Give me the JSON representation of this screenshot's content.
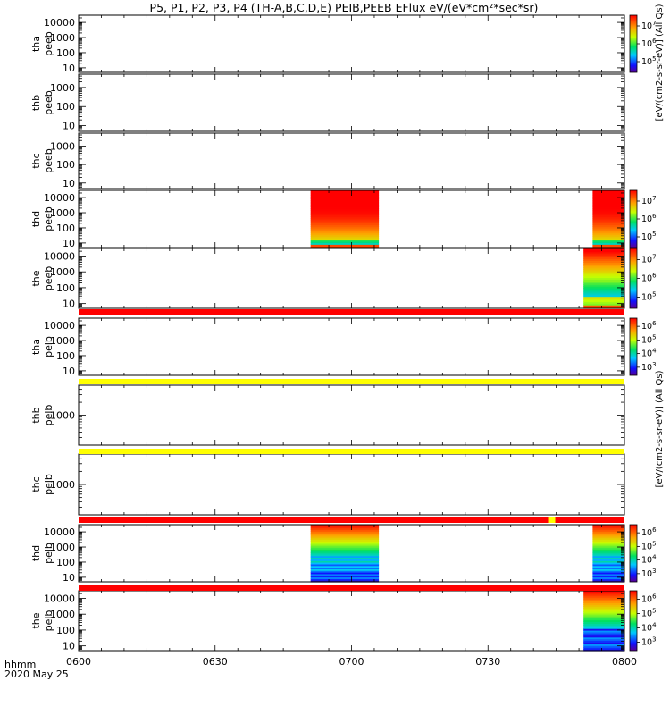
{
  "title": "P5, P1, P2, P3, P4 (TH-A,B,C,D,E) PEIB,PEEB EFlux eV/(eV*cm²*sec*sr)",
  "footer": {
    "time_label": "hhmm",
    "date_label": "2020 May 25"
  },
  "colorbar_labels": [
    "[eV/(cm2-s-sr-eV)] (All Qs)",
    "[eV/(cm2-s-sr-eV)] (All Qs)"
  ],
  "chart_data": {
    "type": "heatmap",
    "x_ticks": [
      "0600",
      "0630",
      "0700",
      "0730",
      "0800"
    ],
    "x_range": [
      "06:00",
      "08:00"
    ],
    "panels": [
      {
        "probe": "tha",
        "instrument": "peeb",
        "ylog": true,
        "ylim": [
          5,
          30000
        ],
        "yticks": [
          "10",
          "100",
          "1000",
          "10000"
        ],
        "colorbar": {
          "ticks": [
            "10^5",
            "10^6",
            "10^7"
          ]
        },
        "data_blocks": []
      },
      {
        "probe": "thb",
        "instrument": "peeb",
        "ylog": true,
        "ylim": [
          5,
          5000
        ],
        "yticks": [
          "10",
          "100",
          "1000"
        ],
        "data_blocks": []
      },
      {
        "probe": "thc",
        "instrument": "peeb",
        "ylog": true,
        "ylim": [
          5,
          5000
        ],
        "yticks": [
          "10",
          "100",
          "1000"
        ],
        "data_blocks": []
      },
      {
        "probe": "thd",
        "instrument": "peeb",
        "ylog": true,
        "ylim": [
          5,
          30000
        ],
        "yticks": [
          "10",
          "100",
          "1000",
          "10000"
        ],
        "colorbar": {
          "ticks": [
            "10^5",
            "10^6",
            "10^7"
          ]
        },
        "data_blocks": [
          {
            "start": "06:51",
            "end": "07:06",
            "pattern": "peeb"
          },
          {
            "start": "07:53",
            "end": "08:00",
            "pattern": "peeb"
          }
        ]
      },
      {
        "probe": "the",
        "instrument": "peeb",
        "ylog": true,
        "ylim": [
          5,
          30000
        ],
        "yticks": [
          "10",
          "100",
          "1000",
          "10000"
        ],
        "colorbar": {
          "ticks": [
            "10^5",
            "10^6",
            "10^7"
          ]
        },
        "data_blocks": [
          {
            "start": "07:51",
            "end": "08:00",
            "pattern": "peeb-e"
          }
        ]
      },
      {
        "probe": "tha",
        "instrument": "peib",
        "ylog": true,
        "ylim": [
          5,
          30000
        ],
        "yticks": [
          "10",
          "100",
          "1000",
          "10000"
        ],
        "colorbar": {
          "ticks": [
            "10^3",
            "10^4",
            "10^5",
            "10^6"
          ]
        },
        "data_blocks": []
      },
      {
        "probe": "thb",
        "instrument": "peib",
        "ylog": true,
        "ylim": [
          200,
          5000
        ],
        "yticks": [
          "1000"
        ],
        "data_blocks": []
      },
      {
        "probe": "thc",
        "instrument": "peib",
        "ylog": true,
        "ylim": [
          200,
          5000
        ],
        "yticks": [
          "1000"
        ],
        "data_blocks": []
      },
      {
        "probe": "thd",
        "instrument": "peib",
        "ylog": true,
        "ylim": [
          5,
          30000
        ],
        "yticks": [
          "10",
          "100",
          "1000",
          "10000"
        ],
        "colorbar": {
          "ticks": [
            "10^3",
            "10^4",
            "10^5",
            "10^6"
          ]
        },
        "data_blocks": [
          {
            "start": "06:51",
            "end": "07:06",
            "pattern": "peib"
          },
          {
            "start": "07:53",
            "end": "08:00",
            "pattern": "peib"
          }
        ]
      },
      {
        "probe": "the",
        "instrument": "peib",
        "ylog": true,
        "ylim": [
          5,
          30000
        ],
        "yticks": [
          "10",
          "100",
          "1000",
          "10000"
        ],
        "colorbar": {
          "ticks": [
            "10^3",
            "10^4",
            "10^5",
            "10^6"
          ]
        },
        "data_blocks": [
          {
            "start": "07:51",
            "end": "08:00",
            "pattern": "peib-e"
          }
        ]
      }
    ],
    "flag_bars": [
      {
        "after_panel": 4,
        "color": "#ff0000"
      },
      {
        "after_panel": 5,
        "color": "#ffff00"
      },
      {
        "after_panel": 6,
        "color": "#ffff00"
      },
      {
        "after_panel": 7,
        "color": "#ff0000",
        "marker_time": "07:44",
        "marker_color": "#ffff00"
      },
      {
        "after_panel": 8,
        "color": "#ff0000"
      }
    ]
  }
}
